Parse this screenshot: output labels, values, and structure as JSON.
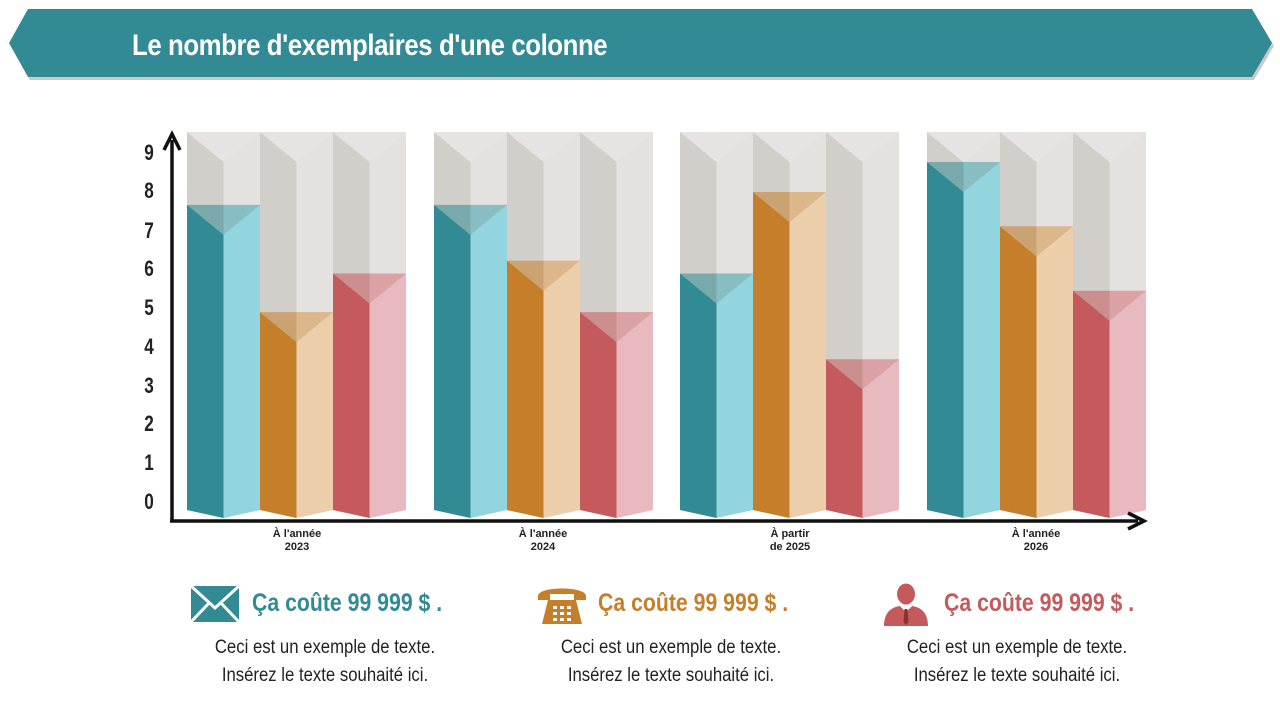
{
  "title": "Le nombre d'exemplaires d'une colonne",
  "colors": {
    "banner": "#328a95",
    "teal_dark": "#318a94",
    "teal_light": "#92d5de",
    "orange_dark": "#c57f2a",
    "orange_light": "#eccfaa",
    "red_dark": "#c45a5c",
    "red_light": "#e8b9be",
    "bg_dark": "#d2ceca",
    "bg_light": "#e4e1de"
  },
  "chart_data": {
    "type": "bar",
    "categories": [
      [
        "À l'année",
        "2023"
      ],
      [
        "À l'année",
        "2024"
      ],
      [
        "À partir",
        "de 2025"
      ],
      [
        "À l'année",
        "2026"
      ]
    ],
    "series": [
      {
        "values": [
          7.3,
          7.3,
          5.7,
          8.3
        ]
      },
      {
        "values": [
          4.8,
          6.0,
          7.6,
          6.8
        ]
      },
      {
        "values": [
          5.7,
          4.8,
          3.7,
          5.3
        ]
      }
    ],
    "ylim": [
      0,
      9
    ],
    "yticks": [
      "0",
      "1",
      "2",
      "3",
      "4",
      "5",
      "6",
      "7",
      "8",
      "9"
    ]
  },
  "info": [
    {
      "icon": "envelope-icon",
      "price": "Ça coûte  99 999 $ .",
      "color": "#318a94",
      "lines": [
        "Ceci est un exemple de texte.",
        "Insérez le texte  souhaité ici."
      ]
    },
    {
      "icon": "telephone-icon",
      "price": "Ça coûte  99 999 $ .",
      "color": "#c57f2a",
      "lines": [
        "Ceci est un exemple de texte.",
        "Insérez le texte  souhaité ici."
      ]
    },
    {
      "icon": "businessman-icon",
      "price": "Ça coûte  99 999 $ .",
      "color": "#c45a5c",
      "lines": [
        "Ceci est un exemple de texte.",
        "Insérez le texte  souhaité ici."
      ]
    }
  ]
}
